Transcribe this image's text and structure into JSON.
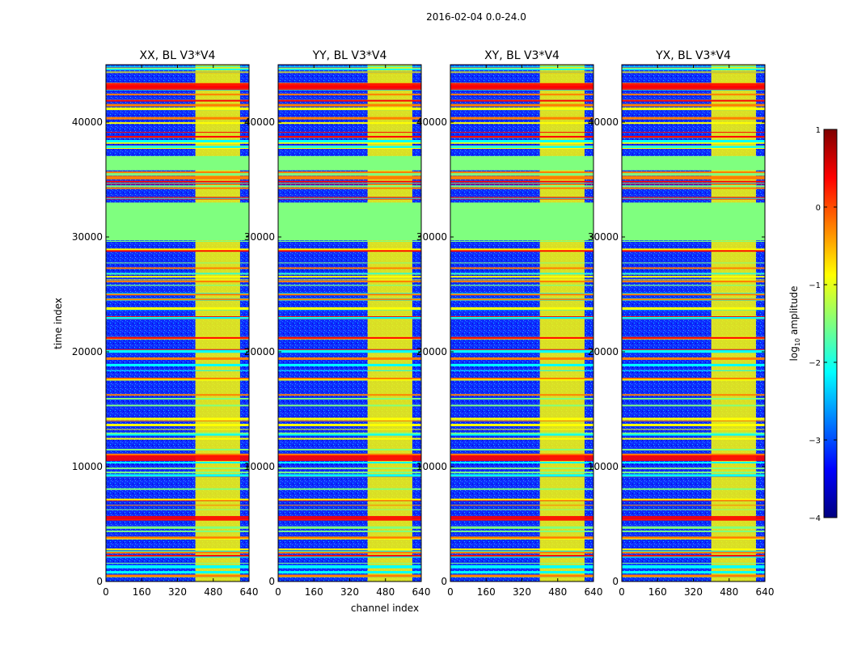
{
  "suptitle": "2016-02-04 0.0-24.0",
  "chart_data": {
    "type": "heatmap",
    "panels": [
      {
        "title": "XX, BL V3*V4",
        "polarization": "XX"
      },
      {
        "title": "YY, BL V3*V4",
        "polarization": "YY"
      },
      {
        "title": "XY, BL V3*V4",
        "polarization": "XY"
      },
      {
        "title": "YX, BL V3*V4",
        "polarization": "YX"
      }
    ],
    "xlabel": "channel index",
    "ylabel": "time index",
    "xlim": [
      0,
      640
    ],
    "ylim": [
      0,
      45000
    ],
    "xticks": [
      0,
      160,
      320,
      480,
      640
    ],
    "yticks": [
      0,
      10000,
      20000,
      30000,
      40000
    ],
    "colorbar": {
      "label_prefix": "log",
      "label_sub": "10",
      "label_suffix": " amplitude",
      "range": [
        -4,
        1
      ],
      "ticks": [
        -4,
        -3,
        -2,
        -1,
        0,
        1
      ],
      "tick_labels": [
        "−4",
        "−3",
        "−2",
        "−1",
        "0",
        "1"
      ],
      "colormap": [
        "#00007f",
        "#0000ff",
        "#007fff",
        "#00ffff",
        "#7fff7f",
        "#ffff00",
        "#ff7f00",
        "#ff0000",
        "#7f0000"
      ]
    },
    "features": {
      "flagged_time_ranges": [
        [
          29700,
          33000
        ],
        [
          35800,
          37000
        ]
      ],
      "flagged_value": -1.2,
      "rfi_channel_range": [
        400,
        600
      ],
      "rfi_value": -0.8,
      "background_value": -3.2,
      "high_amplitude_time_ranges": [
        [
          5300,
          5700
        ],
        [
          10500,
          11000
        ],
        [
          42800,
          43400
        ]
      ],
      "high_amplitude_value": 0.6
    }
  }
}
